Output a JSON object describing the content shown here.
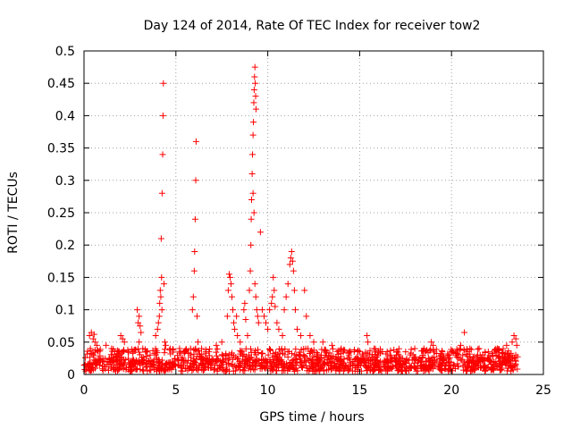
{
  "chart_data": {
    "type": "scatter",
    "title": "Day 124 of 2014, Rate Of TEC Index for receiver tow2",
    "xlabel": "GPS time / hours",
    "ylabel": "ROTI / TECUs",
    "xlim": [
      0,
      25
    ],
    "ylim": [
      0,
      0.5
    ],
    "xticks": [
      0,
      5,
      10,
      15,
      20,
      25
    ],
    "yticks": [
      0,
      0.05,
      0.1,
      0.15,
      0.2,
      0.25,
      0.3,
      0.35,
      0.4,
      0.45,
      0.5
    ],
    "grid": true,
    "marker": "+",
    "color": "#ff0000",
    "background_band": {
      "x_range": [
        0,
        23.6
      ],
      "y_low_range": [
        0.005,
        0.025
      ],
      "density_per_hour": 45
    },
    "series": [
      {
        "name": "ROTI",
        "points": [
          [
            0.3,
            0.06
          ],
          [
            0.4,
            0.065
          ],
          [
            0.5,
            0.055
          ],
          [
            0.6,
            0.05
          ],
          [
            0.7,
            0.045
          ],
          [
            0.35,
            0.04
          ],
          [
            0.55,
            0.062
          ],
          [
            1.2,
            0.045
          ],
          [
            1.5,
            0.04
          ],
          [
            2.0,
            0.06
          ],
          [
            2.1,
            0.055
          ],
          [
            2.2,
            0.05
          ],
          [
            2.4,
            0.035
          ],
          [
            2.9,
            0.1
          ],
          [
            3.0,
            0.09
          ],
          [
            2.95,
            0.08
          ],
          [
            3.05,
            0.075
          ],
          [
            3.1,
            0.065
          ],
          [
            3.0,
            0.05
          ],
          [
            3.2,
            0.04
          ],
          [
            3.4,
            0.035
          ],
          [
            3.6,
            0.03
          ],
          [
            3.9,
            0.06
          ],
          [
            4.0,
            0.07
          ],
          [
            4.05,
            0.08
          ],
          [
            4.1,
            0.09
          ],
          [
            4.15,
            0.13
          ],
          [
            4.2,
            0.21
          ],
          [
            4.22,
            0.15
          ],
          [
            4.25,
            0.28
          ],
          [
            4.28,
            0.34
          ],
          [
            4.3,
            0.4
          ],
          [
            4.32,
            0.45
          ],
          [
            4.18,
            0.12
          ],
          [
            4.12,
            0.11
          ],
          [
            4.24,
            0.1
          ],
          [
            4.35,
            0.14
          ],
          [
            4.4,
            0.05
          ],
          [
            4.45,
            0.045
          ],
          [
            5.2,
            0.04
          ],
          [
            5.5,
            0.035
          ],
          [
            5.8,
            0.04
          ],
          [
            5.9,
            0.1
          ],
          [
            5.95,
            0.12
          ],
          [
            6.0,
            0.16
          ],
          [
            6.02,
            0.19
          ],
          [
            6.05,
            0.24
          ],
          [
            6.08,
            0.3
          ],
          [
            6.1,
            0.36
          ],
          [
            6.15,
            0.09
          ],
          [
            6.2,
            0.05
          ],
          [
            6.4,
            0.04
          ],
          [
            6.8,
            0.035
          ],
          [
            7.2,
            0.045
          ],
          [
            7.5,
            0.05
          ],
          [
            7.8,
            0.09
          ],
          [
            7.85,
            0.13
          ],
          [
            7.9,
            0.155
          ],
          [
            7.95,
            0.15
          ],
          [
            8.0,
            0.14
          ],
          [
            8.05,
            0.12
          ],
          [
            8.1,
            0.1
          ],
          [
            8.15,
            0.08
          ],
          [
            8.2,
            0.07
          ],
          [
            8.3,
            0.09
          ],
          [
            8.35,
            0.06
          ],
          [
            8.5,
            0.05
          ],
          [
            8.7,
            0.1
          ],
          [
            8.75,
            0.11
          ],
          [
            8.8,
            0.085
          ],
          [
            8.9,
            0.06
          ],
          [
            9.0,
            0.13
          ],
          [
            9.05,
            0.16
          ],
          [
            9.08,
            0.2
          ],
          [
            9.1,
            0.24
          ],
          [
            9.12,
            0.27
          ],
          [
            9.15,
            0.31
          ],
          [
            9.17,
            0.34
          ],
          [
            9.2,
            0.37
          ],
          [
            9.22,
            0.39
          ],
          [
            9.24,
            0.42
          ],
          [
            9.26,
            0.44
          ],
          [
            9.28,
            0.46
          ],
          [
            9.3,
            0.475
          ],
          [
            9.32,
            0.45
          ],
          [
            9.34,
            0.43
          ],
          [
            9.36,
            0.41
          ],
          [
            9.2,
            0.28
          ],
          [
            9.25,
            0.25
          ],
          [
            9.3,
            0.14
          ],
          [
            9.35,
            0.12
          ],
          [
            9.4,
            0.1
          ],
          [
            9.45,
            0.09
          ],
          [
            9.5,
            0.08
          ],
          [
            9.6,
            0.22
          ],
          [
            9.7,
            0.1
          ],
          [
            9.8,
            0.09
          ],
          [
            9.9,
            0.08
          ],
          [
            10.0,
            0.07
          ],
          [
            10.1,
            0.1
          ],
          [
            10.2,
            0.11
          ],
          [
            10.25,
            0.12
          ],
          [
            10.3,
            0.15
          ],
          [
            10.35,
            0.13
          ],
          [
            10.4,
            0.105
          ],
          [
            10.5,
            0.08
          ],
          [
            10.6,
            0.07
          ],
          [
            10.8,
            0.06
          ],
          [
            10.9,
            0.1
          ],
          [
            11.0,
            0.12
          ],
          [
            11.1,
            0.14
          ],
          [
            11.2,
            0.17
          ],
          [
            11.25,
            0.18
          ],
          [
            11.3,
            0.19
          ],
          [
            11.35,
            0.175
          ],
          [
            11.4,
            0.16
          ],
          [
            11.45,
            0.13
          ],
          [
            11.5,
            0.1
          ],
          [
            11.6,
            0.07
          ],
          [
            11.8,
            0.06
          ],
          [
            12.0,
            0.13
          ],
          [
            12.1,
            0.09
          ],
          [
            12.3,
            0.06
          ],
          [
            12.5,
            0.05
          ],
          [
            13.0,
            0.05
          ],
          [
            13.5,
            0.045
          ],
          [
            14.0,
            0.04
          ],
          [
            14.5,
            0.035
          ],
          [
            15.0,
            0.035
          ],
          [
            15.4,
            0.06
          ],
          [
            15.45,
            0.05
          ],
          [
            16.0,
            0.03
          ],
          [
            16.5,
            0.035
          ],
          [
            17.0,
            0.03
          ],
          [
            17.5,
            0.035
          ],
          [
            18.0,
            0.04
          ],
          [
            18.5,
            0.04
          ],
          [
            18.9,
            0.05
          ],
          [
            19.0,
            0.045
          ],
          [
            19.5,
            0.035
          ],
          [
            20.0,
            0.035
          ],
          [
            20.5,
            0.045
          ],
          [
            20.7,
            0.065
          ],
          [
            21.0,
            0.04
          ],
          [
            21.5,
            0.04
          ],
          [
            22.0,
            0.035
          ],
          [
            22.5,
            0.04
          ],
          [
            23.0,
            0.045
          ],
          [
            23.3,
            0.05
          ],
          [
            23.4,
            0.06
          ],
          [
            23.5,
            0.055
          ],
          [
            23.55,
            0.045
          ]
        ]
      }
    ]
  }
}
